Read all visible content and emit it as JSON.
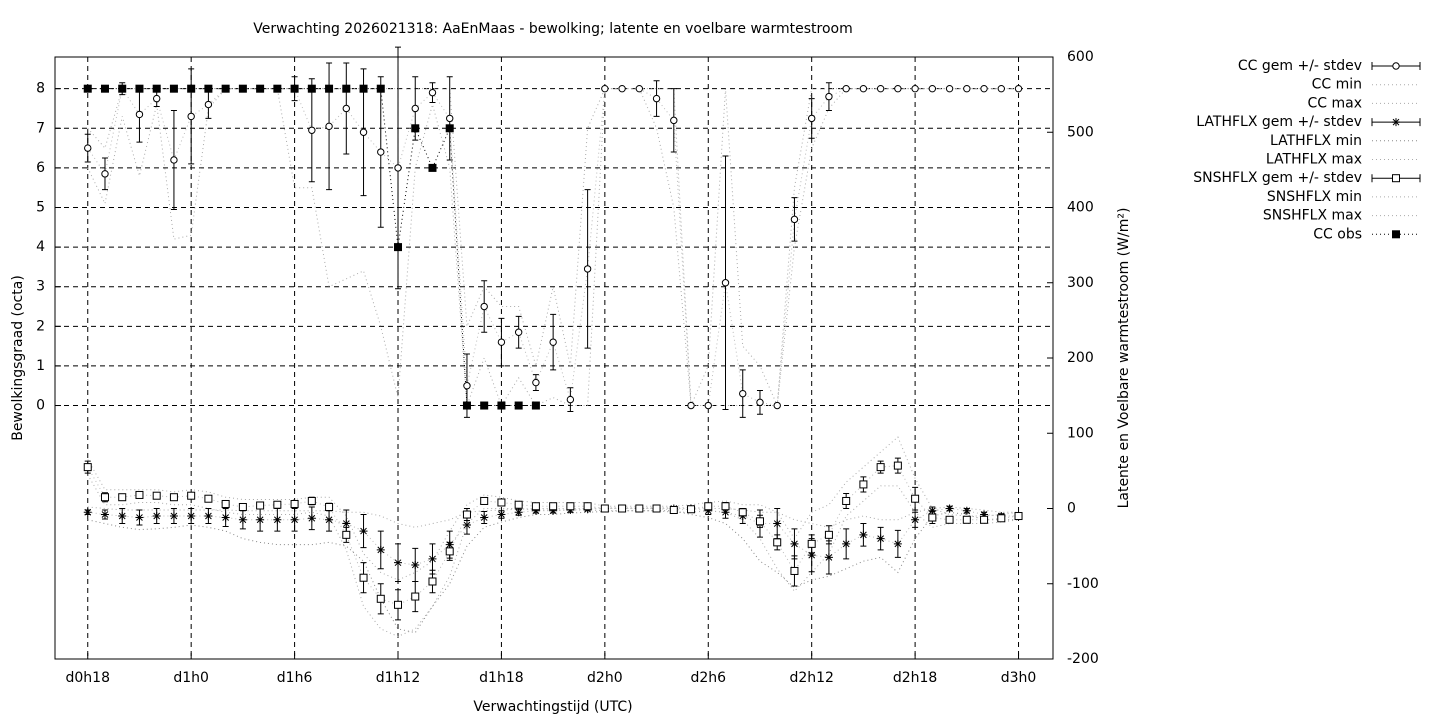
{
  "chart_data": {
    "type": "line",
    "title": "Verwachting 2026021318: AaEnMaas - bewolking; latente en voelbare warmtestroom",
    "x_label": "Verwachtingstijd (UTC)",
    "y_label": "Bewolkingsgraad (octa)",
    "y2_label": "Latente en Voelbare warmtestroom (W/m²)",
    "x": [
      0,
      1,
      2,
      3,
      4,
      5,
      6,
      7,
      8,
      9,
      10,
      11,
      12,
      13,
      14,
      15,
      16,
      17,
      18,
      19,
      20,
      21,
      22,
      23,
      24,
      25,
      26,
      27,
      28,
      29,
      30,
      31,
      32,
      33,
      34,
      35,
      36,
      37,
      38,
      39,
      40,
      41,
      42,
      43,
      44,
      45,
      46,
      47,
      48,
      49,
      50,
      51,
      52,
      53,
      54
    ],
    "xlim": [
      -1.9,
      56
    ],
    "xticks": [
      {
        "value": 0,
        "label": "d0h18"
      },
      {
        "value": 6,
        "label": "d1h0"
      },
      {
        "value": 12,
        "label": "d1h6"
      },
      {
        "value": 18,
        "label": "d1h12"
      },
      {
        "value": 24,
        "label": "d1h18"
      },
      {
        "value": 30,
        "label": "d2h0"
      },
      {
        "value": 36,
        "label": "d2h6"
      },
      {
        "value": 42,
        "label": "d2h12"
      },
      {
        "value": 48,
        "label": "d2h18"
      },
      {
        "value": 54,
        "label": "d3h0"
      }
    ],
    "ylim": [
      -6.4,
      8.8
    ],
    "yticks": [
      0,
      1,
      2,
      3,
      4,
      5,
      6,
      7,
      8
    ],
    "y2lim": [
      -200,
      600
    ],
    "y2ticks": [
      -200,
      -100,
      0,
      100,
      200,
      300,
      400,
      500,
      600
    ],
    "grid": true,
    "legend": "right",
    "series": [
      {
        "name": "CC gem +/- stdev",
        "style": "errorbar",
        "marker": "circle",
        "color": "#000000",
        "axis": "y",
        "values": [
          6.5,
          5.85,
          8,
          7.35,
          7.75,
          6.2,
          7.3,
          7.6,
          8,
          8,
          8,
          8,
          8,
          6.95,
          7.05,
          7.5,
          6.9,
          6.4,
          6,
          7.5,
          7.9,
          7.25,
          0.5,
          2.5,
          1.6,
          1.85,
          0.58,
          1.6,
          0.15,
          3.45,
          8,
          8,
          8,
          7.75,
          7.2,
          0,
          0,
          3.1,
          0.3,
          0.08,
          0,
          4.7,
          7.25,
          7.8,
          8,
          8,
          8,
          8,
          8,
          8,
          8,
          8,
          8,
          8,
          8
        ],
        "errors": [
          0.35,
          0.4,
          0.15,
          0.7,
          0.2,
          1.25,
          1.2,
          0.35,
          0,
          0,
          0,
          0,
          0.3,
          1.3,
          1.6,
          1.15,
          1.6,
          1.9,
          3.05,
          0.8,
          0.25,
          1.05,
          0.8,
          0.65,
          0.6,
          0.4,
          0.2,
          0.7,
          0.3,
          2.0,
          0,
          0,
          0,
          0.45,
          0.8,
          0,
          0,
          3.2,
          0.6,
          0.3,
          0,
          0.55,
          0.5,
          0.35,
          0,
          0,
          0,
          0,
          0,
          0,
          0,
          0,
          0,
          0,
          0
        ]
      },
      {
        "name": "CC min",
        "style": "dotted",
        "color": "#aaaaaa",
        "axis": "y",
        "values": [
          6,
          5.1,
          7.3,
          5.8,
          7.6,
          4.2,
          4.3,
          7.5,
          8,
          8,
          8,
          8,
          5.5,
          5.5,
          3,
          3.2,
          3.4,
          2,
          0.2,
          6,
          7.6,
          6,
          0,
          1.2,
          0,
          0.7,
          0,
          0.2,
          0,
          0,
          8,
          8,
          8,
          7,
          5,
          0,
          0,
          0,
          0,
          0,
          0,
          4,
          6.5,
          7.5,
          8,
          8,
          8,
          8,
          8,
          8,
          8,
          8,
          8,
          8,
          8
        ]
      },
      {
        "name": "CC max",
        "style": "dotted",
        "color": "#aaaaaa",
        "axis": "y",
        "values": [
          7,
          6.5,
          8,
          8,
          8,
          8,
          8,
          8,
          8,
          8,
          8,
          8,
          8,
          8,
          8,
          8,
          8,
          8,
          8,
          8,
          8,
          8,
          2,
          3,
          2.5,
          2.5,
          1,
          3,
          1,
          7,
          8,
          8,
          8,
          8,
          8,
          0,
          1,
          8,
          1.5,
          1,
          0,
          5.5,
          8,
          8,
          8,
          8,
          8,
          8,
          8,
          8,
          8,
          8,
          8,
          8,
          8
        ]
      },
      {
        "name": "LATHFLX gem +/- stdev",
        "style": "errorbar",
        "marker": "star",
        "color": "#000000",
        "axis": "y2",
        "values": [
          -5,
          -8,
          -10,
          -12,
          -10,
          -10,
          -10,
          -10,
          -12,
          -15,
          -15,
          -15,
          -15,
          -13,
          -15,
          -20,
          -30,
          -55,
          -72,
          -75,
          -67,
          -48,
          -22,
          -12,
          -8,
          -5,
          -3,
          -3,
          -2,
          -1,
          0,
          0,
          0,
          0,
          0,
          0,
          -3,
          -5,
          -10,
          -20,
          -20,
          -47,
          -62,
          -65,
          -47,
          -35,
          -40,
          -47,
          -15,
          -3,
          0,
          -3,
          -8,
          -10,
          -10
        ],
        "errors": [
          3,
          6,
          10,
          10,
          10,
          10,
          10,
          10,
          12,
          12,
          15,
          15,
          15,
          15,
          15,
          18,
          22,
          25,
          25,
          22,
          20,
          18,
          12,
          8,
          5,
          4,
          3,
          3,
          3,
          2,
          2,
          2,
          2,
          2,
          2,
          3,
          5,
          8,
          10,
          18,
          20,
          20,
          22,
          22,
          20,
          15,
          15,
          18,
          10,
          5,
          3,
          3,
          3,
          3,
          3
        ]
      },
      {
        "name": "LATHFLX min",
        "style": "dotted",
        "color": "#888888",
        "axis": "y2",
        "values": [
          -15,
          -20,
          -25,
          -28,
          -27,
          -25,
          -22,
          -25,
          -30,
          -40,
          -45,
          -48,
          -48,
          -48,
          -45,
          -50,
          -70,
          -120,
          -160,
          -165,
          -130,
          -100,
          -50,
          -25,
          -18,
          -12,
          -8,
          -8,
          -6,
          -5,
          -4,
          -3,
          -3,
          -3,
          -3,
          -8,
          -12,
          -20,
          -40,
          -70,
          -85,
          -105,
          -95,
          -90,
          -80,
          -70,
          -65,
          -85,
          -40,
          -10,
          -5,
          -8,
          -15,
          -15,
          -15
        ]
      },
      {
        "name": "LATHFLX max",
        "style": "dotted",
        "color": "#aaaaaa",
        "axis": "y2",
        "values": [
          2,
          0,
          -2,
          -2,
          -2,
          -2,
          -2,
          -2,
          -2,
          -3,
          -3,
          -3,
          -3,
          -3,
          -3,
          -5,
          -5,
          -10,
          -20,
          -25,
          -20,
          -15,
          -5,
          -3,
          -2,
          -1,
          0,
          0,
          0,
          0,
          1,
          1,
          1,
          1,
          1,
          1,
          0,
          0,
          -2,
          -5,
          -5,
          -15,
          -20,
          -25,
          -15,
          -10,
          -15,
          -15,
          -5,
          0,
          2,
          0,
          -2,
          -5,
          -5
        ]
      },
      {
        "name": "SNSHFLX gem +/- stdev",
        "style": "errorbar",
        "marker": "square",
        "color": "#000000",
        "axis": "y2",
        "values": [
          55,
          15,
          15,
          18,
          17,
          15,
          17,
          13,
          6,
          2,
          4,
          5,
          6,
          10,
          2,
          -35,
          -92,
          -120,
          -128,
          -117,
          -97,
          -57,
          -8,
          10,
          8,
          5,
          3,
          3,
          3,
          3,
          0,
          0,
          0,
          0,
          -2,
          -1,
          3,
          3,
          -5,
          -17,
          -45,
          -83,
          -47,
          -35,
          10,
          32,
          55,
          57,
          13,
          -12,
          -15,
          -15,
          -15,
          -13,
          -10
        ],
        "errors": [
          8,
          6,
          4,
          3,
          3,
          3,
          3,
          3,
          4,
          4,
          4,
          4,
          4,
          5,
          5,
          10,
          20,
          20,
          20,
          20,
          15,
          12,
          8,
          3,
          2,
          2,
          2,
          2,
          2,
          2,
          1,
          1,
          1,
          1,
          2,
          2,
          4,
          5,
          5,
          8,
          10,
          20,
          12,
          12,
          10,
          10,
          8,
          10,
          15,
          8,
          3,
          3,
          3,
          3,
          3
        ]
      },
      {
        "name": "SNSHFLX min",
        "style": "dotted",
        "color": "#aaaaaa",
        "axis": "y2",
        "values": [
          45,
          5,
          5,
          8,
          8,
          5,
          5,
          0,
          -5,
          -8,
          -8,
          -8,
          -8,
          -5,
          -10,
          -55,
          -130,
          -160,
          -170,
          -160,
          -130,
          -90,
          -20,
          0,
          0,
          0,
          -2,
          -2,
          -2,
          -2,
          -3,
          -3,
          -3,
          -3,
          -5,
          -5,
          -3,
          -5,
          -15,
          -40,
          -80,
          -110,
          -85,
          -60,
          -10,
          10,
          30,
          30,
          -5,
          -25,
          -20,
          -20,
          -20,
          -18,
          -15
        ]
      },
      {
        "name": "SNSHFLX max",
        "style": "dotted",
        "color": "#aaaaaa",
        "axis": "y2",
        "values": [
          65,
          25,
          25,
          25,
          25,
          22,
          25,
          22,
          15,
          12,
          12,
          12,
          12,
          15,
          15,
          -10,
          -60,
          -85,
          -95,
          -85,
          -70,
          -30,
          5,
          18,
          15,
          10,
          8,
          8,
          8,
          8,
          3,
          3,
          3,
          3,
          3,
          5,
          8,
          10,
          5,
          5,
          -5,
          -40,
          -5,
          5,
          35,
          55,
          75,
          95,
          40,
          0,
          -8,
          -10,
          -10,
          -8,
          -5
        ]
      },
      {
        "name": "CC obs",
        "style": "dotted",
        "marker": "filled-square",
        "color": "#000000",
        "axis": "y",
        "values": [
          8,
          8,
          8,
          8,
          8,
          8,
          8,
          8,
          8,
          8,
          8,
          8,
          8,
          8,
          8,
          8,
          8,
          8,
          4,
          7,
          6,
          7,
          0,
          0,
          0,
          0,
          0,
          null,
          null,
          null,
          null,
          null,
          null,
          null,
          null,
          null,
          null,
          null,
          null,
          null,
          null,
          null,
          null,
          null,
          null,
          null,
          null,
          null,
          null,
          null,
          null,
          null,
          null,
          null,
          null
        ]
      }
    ]
  }
}
